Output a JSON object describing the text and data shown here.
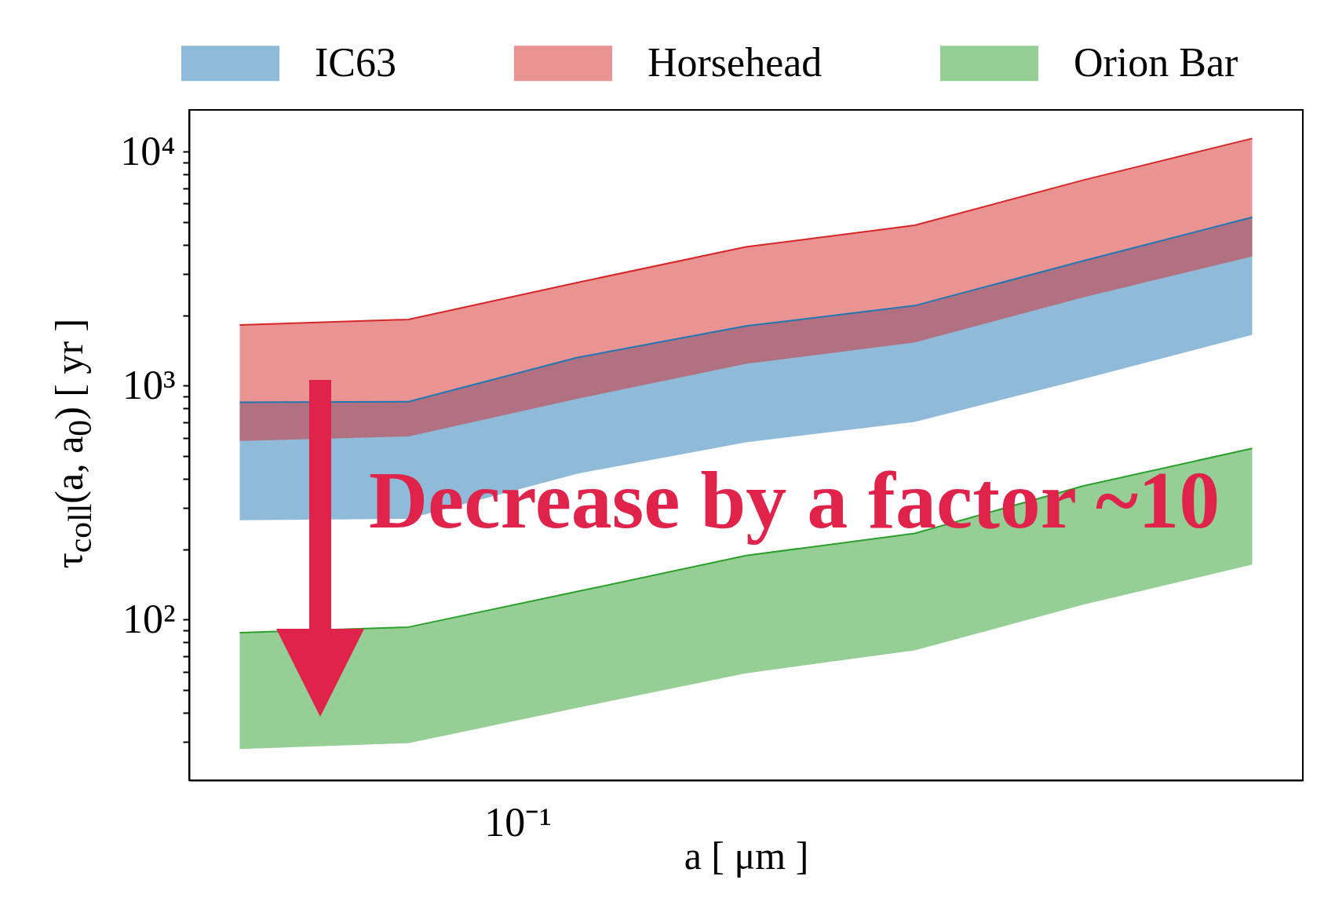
{
  "chart_data": {
    "type": "line",
    "xlabel": "a [ μm ]",
    "ylabel": "τ$_{coll}$(a, a$_{0}$) [ yr ]",
    "categories": [
      null,
      null,
      null,
      null,
      null,
      null,
      null
    ],
    "series": [
      {
        "name": "IC63",
        "color": "#1f77b4",
        "values": [
          849,
          855,
          1320,
          1800,
          2200,
          3420,
          5250
        ],
        "upper": [
          849,
          855,
          1320,
          1800,
          2200,
          3420,
          5250
        ],
        "lower": [
          266,
          270,
          421,
          573,
          700,
          1070,
          1650
        ]
      },
      {
        "name": "Horsehead",
        "color": "#d62728",
        "values": [
          1820,
          1920,
          2760,
          3920,
          4850,
          7570,
          11400
        ],
        "upper": [
          1820,
          1920,
          2760,
          3920,
          4850,
          7570,
          11400
        ],
        "lower": [
          581,
          607,
          879,
          1240,
          1530,
          2390,
          3570
        ]
      },
      {
        "name": "Orion Bar",
        "color": "#2ca02c",
        "values": [
          88,
          93,
          132,
          188,
          234,
          373,
          540
        ],
        "upper": [
          88,
          93,
          132,
          188,
          234,
          373,
          540
        ],
        "lower": [
          28,
          29.7,
          42,
          59,
          74,
          116,
          172
        ]
      }
    ],
    "log": "y",
    "ylim": [
      20.6,
      15100
    ],
    "yticks": [
      {
        "value": 30,
        "label": null
      },
      {
        "value": 40,
        "label": null
      },
      {
        "value": 50,
        "label": null
      },
      {
        "value": 60,
        "label": null
      },
      {
        "value": 70,
        "label": null
      },
      {
        "value": 80,
        "label": null
      },
      {
        "value": 90,
        "label": null
      },
      {
        "value": 100,
        "label": "10²"
      },
      {
        "value": 200,
        "label": null
      },
      {
        "value": 300,
        "label": null
      },
      {
        "value": 400,
        "label": null
      },
      {
        "value": 500,
        "label": null
      },
      {
        "value": 600,
        "label": null
      },
      {
        "value": 700,
        "label": null
      },
      {
        "value": 800,
        "label": null
      },
      {
        "value": 900,
        "label": null
      },
      {
        "value": 1000,
        "label": "10³"
      },
      {
        "value": 2000,
        "label": null
      },
      {
        "value": 3000,
        "label": null
      },
      {
        "value": 4000,
        "label": null
      },
      {
        "value": 5000,
        "label": null
      },
      {
        "value": 6000,
        "label": null
      },
      {
        "value": 7000,
        "label": null
      },
      {
        "value": 8000,
        "label": null
      },
      {
        "value": 9000,
        "label": null
      },
      {
        "value": 10000,
        "label": "10⁴"
      }
    ],
    "legend": "top",
    "annotations": [
      "Decrease by a factor ~10",
      "10⁻¹"
    ]
  }
}
